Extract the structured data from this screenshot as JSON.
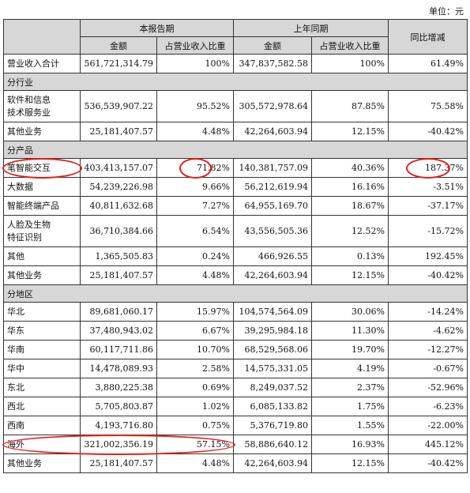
{
  "unit_label": "单位：元",
  "headers": {
    "current_period": "本报告期",
    "prior_period": "上年同期",
    "yoy_change": "同比增减",
    "amount": "金额",
    "ratio": "占营业收入比重"
  },
  "total_row": {
    "label": "营业收入合计",
    "cur_amount": "561,721,314.79",
    "cur_ratio": "100%",
    "prev_amount": "347,837,582.58",
    "prev_ratio": "100%",
    "yoy": "61.49%"
  },
  "sections": {
    "industry": {
      "title": "分行业",
      "rows": [
        {
          "label": "软件和信息技术服务业",
          "cur_amount": "536,539,907.22",
          "cur_ratio": "95.52%",
          "prev_amount": "305,572,978.64",
          "prev_ratio": "87.85%",
          "yoy": "75.58%"
        },
        {
          "label": "其他业务",
          "cur_amount": "25,181,407.57",
          "cur_ratio": "4.48%",
          "prev_amount": "42,264,603.94",
          "prev_ratio": "12.15%",
          "yoy": "-40.42%"
        }
      ]
    },
    "product": {
      "title": "分产品",
      "rows": [
        {
          "label": "笔智能交互",
          "cur_amount": "403,413,157.07",
          "cur_ratio": "71.82%",
          "prev_amount": "140,381,757.09",
          "prev_ratio": "40.36%",
          "yoy": "187.37%"
        },
        {
          "label": "大数据",
          "cur_amount": "54,239,226.98",
          "cur_ratio": "9.66%",
          "prev_amount": "56,212,619.94",
          "prev_ratio": "16.16%",
          "yoy": "-3.51%"
        },
        {
          "label": "智能终端产品",
          "cur_amount": "40,811,632.68",
          "cur_ratio": "7.27%",
          "prev_amount": "64,955,169.70",
          "prev_ratio": "18.67%",
          "yoy": "-37.17%"
        },
        {
          "label": "人脸及生物特征识别",
          "cur_amount": "36,710,384.66",
          "cur_ratio": "6.54%",
          "prev_amount": "43,556,505.36",
          "prev_ratio": "12.52%",
          "yoy": "-15.72%"
        },
        {
          "label": "其他",
          "cur_amount": "1,365,505.83",
          "cur_ratio": "0.24%",
          "prev_amount": "466,926.55",
          "prev_ratio": "0.13%",
          "yoy": "192.45%"
        },
        {
          "label": "其他业务",
          "cur_amount": "25,181,407.57",
          "cur_ratio": "4.48%",
          "prev_amount": "42,264,603.94",
          "prev_ratio": "12.15%",
          "yoy": "-40.42%"
        }
      ]
    },
    "region": {
      "title": "分地区",
      "rows": [
        {
          "label": "华北",
          "cur_amount": "89,681,060.17",
          "cur_ratio": "15.97%",
          "prev_amount": "104,574,564.09",
          "prev_ratio": "30.06%",
          "yoy": "-14.24%"
        },
        {
          "label": "华东",
          "cur_amount": "37,480,943.02",
          "cur_ratio": "6.67%",
          "prev_amount": "39,295,984.18",
          "prev_ratio": "11.30%",
          "yoy": "-4.62%"
        },
        {
          "label": "华南",
          "cur_amount": "60,117,711.86",
          "cur_ratio": "10.70%",
          "prev_amount": "68,529,568.06",
          "prev_ratio": "19.70%",
          "yoy": "-12.27%"
        },
        {
          "label": "华中",
          "cur_amount": "14,478,089.93",
          "cur_ratio": "2.58%",
          "prev_amount": "14,575,331.05",
          "prev_ratio": "4.19%",
          "yoy": "-0.67%"
        },
        {
          "label": "东北",
          "cur_amount": "3,880,225.38",
          "cur_ratio": "0.69%",
          "prev_amount": "8,249,037.52",
          "prev_ratio": "2.37%",
          "yoy": "-52.96%"
        },
        {
          "label": "西北",
          "cur_amount": "5,705,803.87",
          "cur_ratio": "1.02%",
          "prev_amount": "6,085,133.82",
          "prev_ratio": "1.75%",
          "yoy": "-6.23%"
        },
        {
          "label": "西南",
          "cur_amount": "4,193,716.80",
          "cur_ratio": "0.75%",
          "prev_amount": "5,376,719.80",
          "prev_ratio": "1.55%",
          "yoy": "-22.00%"
        },
        {
          "label": "海外",
          "cur_amount": "321,002,356.19",
          "cur_ratio": "57.15%",
          "prev_amount": "58,886,640.12",
          "prev_ratio": "16.93%",
          "yoy": "445.12%"
        },
        {
          "label": "其他业务",
          "cur_amount": "25,181,407.57",
          "cur_ratio": "4.48%",
          "prev_amount": "42,264,603.94",
          "prev_ratio": "12.15%",
          "yoy": "-40.42%"
        }
      ]
    }
  },
  "annotation_color": "#e3201b"
}
